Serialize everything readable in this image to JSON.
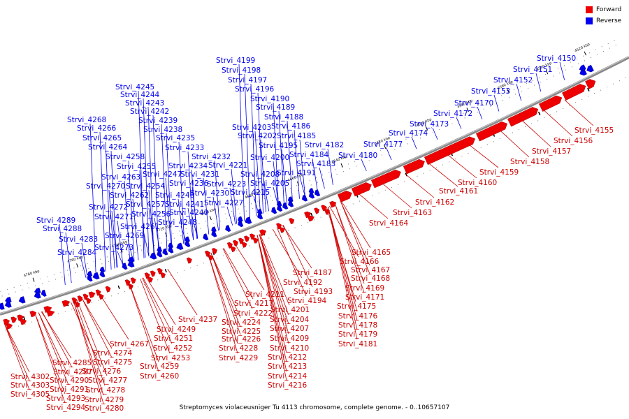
{
  "legend": [
    {
      "label": "Forward",
      "color": "#ee0000"
    },
    {
      "label": "Reverse",
      "color": "#0000ee"
    }
  ],
  "caption": "Streptomyces violaceusniger Tu 4113 chromosome, complete genome. - 0..10657107",
  "ticks": [
    "4520 kbp",
    "4540 kbp",
    "4560 kbp",
    "4580 kbp",
    "4600 kbp",
    "4620 kbp",
    "4640 kbp",
    "4660 kbp",
    "4680 kbp",
    "4700 kbp",
    "4720 kbp",
    "4740 kbp",
    "4760 kbp",
    "4780 kbp"
  ],
  "forward_labels": [
    "Strvi_4155",
    "Strvi_4156",
    "Strvi_4157",
    "Strvi_4158",
    "Strvi_4159",
    "Strvi_4160",
    "Strvi_4161",
    "Strvi_4162",
    "Strvi_4163",
    "Strvi_4164",
    "Strvi_4165",
    "Strvi_4166",
    "Strvi_4167",
    "Strvi_4168",
    "Strvi_4169",
    "Strvi_4171",
    "Strvi_4175",
    "Strvi_4176",
    "Strvi_4178",
    "Strvi_4179",
    "Strvi_4181",
    "Strvi_4187",
    "Strvi_4192",
    "Strvi_4193",
    "Strvi_4194",
    "Strvi_4201",
    "Strvi_4204",
    "Strvi_4207",
    "Strvi_4209",
    "Strvi_4210",
    "Strvi_4212",
    "Strvi_4213",
    "Strvi_4214",
    "Strvi_4216",
    "Strvi_4211",
    "Strvi_4217",
    "Strvi_4222",
    "Strvi_4224",
    "Strvi_4225",
    "Strvi_4226",
    "Strvi_4228",
    "Strvi_4229",
    "Strvi_4237",
    "Strvi_4249",
    "Strvi_4251",
    "Strvi_4252",
    "Strvi_4253",
    "Strvi_4259",
    "Strvi_4260",
    "Strvi_4267",
    "Strvi_4274",
    "Strvi_4275",
    "Strvi_4276",
    "Strvi_4277",
    "Strvi_4278",
    "Strvi_4279",
    "Strvi_4280",
    "Strvi_4285",
    "Strvi_4287",
    "Strvi_4290",
    "Strvi_4291",
    "Strvi_4293",
    "Strvi_4294",
    "Strvi_4302",
    "Strvi_4303",
    "Strvi_4305"
  ],
  "reverse_labels": [
    "Strvi_4150",
    "Strvi_4151",
    "Strvi_4152",
    "Strvi_4153",
    "Strvi_4170",
    "Strvi_4172",
    "Strvi_4173",
    "Strvi_4174",
    "Strvi_4177",
    "Strvi_4180",
    "Strvi_4182",
    "Strvi_4183",
    "Strvi_4184",
    "Strvi_4185",
    "Strvi_4186",
    "Strvi_4188",
    "Strvi_4189",
    "Strvi_4190",
    "Strvi_4191",
    "Strvi_4195",
    "Strvi_4196",
    "Strvi_4197",
    "Strvi_4198",
    "Strvi_4199",
    "Strvi_4200",
    "Strvi_4202",
    "Strvi_4203",
    "Strvi_4205",
    "Strvi_4208",
    "Strvi_4215",
    "Strvi_4221",
    "Strvi_4223",
    "Strvi_4227",
    "Strvi_4230",
    "Strvi_4231",
    "Strvi_4232",
    "Strvi_4233",
    "Strvi_4234",
    "Strvi_4235",
    "Strvi_4236",
    "Strvi_4238",
    "Strvi_4239",
    "Strvi_4240",
    "Strvi_4241",
    "Strvi_4242",
    "Strvi_4243",
    "Strvi_4244",
    "Strvi_4245",
    "Strvi_4246",
    "Strvi_4247",
    "Strvi_4248",
    "Strvi_4254",
    "Strvi_4255",
    "Strvi_4256",
    "Strvi_4257",
    "Strvi_4258",
    "Strvi_4261",
    "Strvi_4262",
    "Strvi_4263",
    "Strvi_4264",
    "Strvi_4265",
    "Strvi_4266",
    "Strvi_4268",
    "Strvi_4269",
    "Strvi_4270",
    "Strvi_4271",
    "Strvi_4272",
    "Strvi_4273",
    "Strvi_4283",
    "Strvi_4284",
    "Strvi_4288",
    "Strvi_4289"
  ]
}
